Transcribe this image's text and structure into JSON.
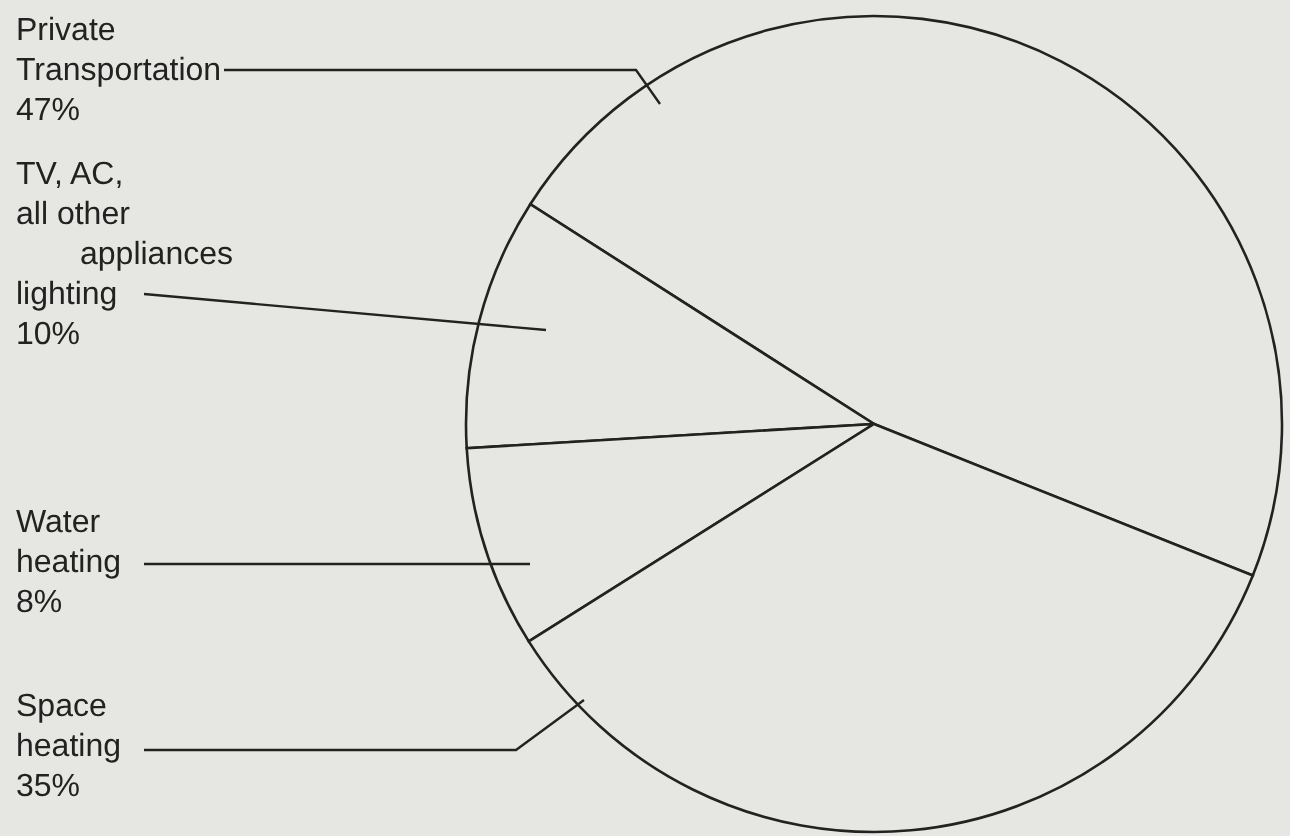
{
  "chart_data": {
    "type": "pie",
    "categories": [
      "Private Transportation",
      "TV, AC, all other appliances lighting",
      "Water heating",
      "Space heating"
    ],
    "values": [
      47,
      10,
      8,
      35
    ],
    "colors": [
      "#e6e6e2",
      "#e6e6e2",
      "#e6e6e2",
      "#e6e6e2"
    ],
    "value_labels": [
      "47%",
      "10%",
      "8%",
      "35%"
    ],
    "legend": false
  }
}
